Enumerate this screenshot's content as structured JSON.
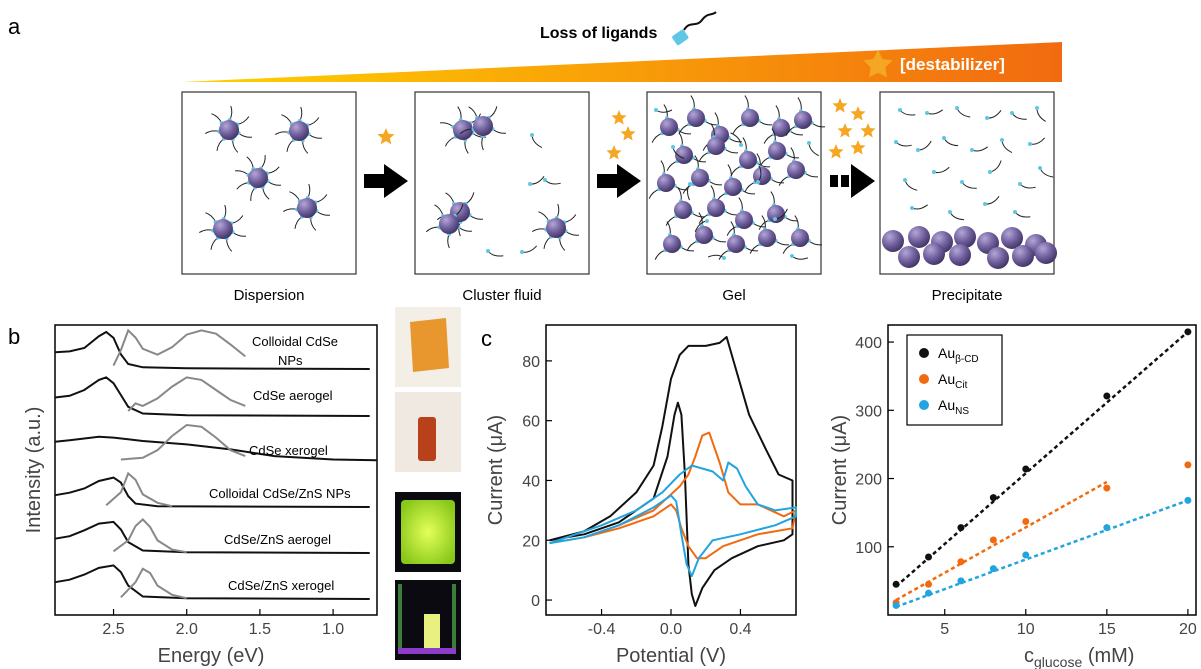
{
  "panel_a": {
    "label": "a",
    "ligand_loss_label": "Loss of ligands",
    "destabilizer_label": "[destabilizer]",
    "stages": [
      "Dispersion",
      "Cluster fluid",
      "Gel",
      "Precipitate"
    ],
    "colors": {
      "particle": "#6f5e9c",
      "ligand_end": "#5fc6e6",
      "star": "#f5a623",
      "gradient_start": "#ffd200",
      "gradient_end": "#f26a10"
    }
  },
  "panel_b": {
    "label": "b",
    "ylabel": "Intensity (a.u.)",
    "xlabel": "Energy (eV)",
    "xticks": [
      "2.5",
      "2.0",
      "1.5",
      "1.0"
    ],
    "xlim": [
      2.9,
      0.7
    ],
    "spectra": [
      {
        "label_line1": "Colloidal CdSe",
        "label_line2": "NPs",
        "absorption": [
          [
            2.9,
            0.4
          ],
          [
            2.8,
            0.42
          ],
          [
            2.7,
            0.5
          ],
          [
            2.6,
            0.78
          ],
          [
            2.55,
            0.88
          ],
          [
            2.5,
            0.74
          ],
          [
            2.45,
            0.35
          ],
          [
            2.4,
            0.12
          ],
          [
            2.3,
            0.04
          ],
          [
            2.0,
            0.02
          ],
          [
            1.5,
            0.01
          ],
          [
            0.75,
            0.0
          ]
        ],
        "emission": [
          [
            2.5,
            0.08
          ],
          [
            2.45,
            0.45
          ],
          [
            2.4,
            0.92
          ],
          [
            2.35,
            0.75
          ],
          [
            2.3,
            0.48
          ],
          [
            2.2,
            0.34
          ],
          [
            2.1,
            0.52
          ],
          [
            2.0,
            0.82
          ],
          [
            1.9,
            0.92
          ],
          [
            1.8,
            0.84
          ],
          [
            1.7,
            0.58
          ],
          [
            1.6,
            0.3
          ]
        ]
      },
      {
        "label_line1": "CdSe aerogel",
        "label_line2": "",
        "absorption": [
          [
            2.9,
            0.44
          ],
          [
            2.8,
            0.48
          ],
          [
            2.7,
            0.62
          ],
          [
            2.6,
            0.86
          ],
          [
            2.55,
            0.92
          ],
          [
            2.5,
            0.78
          ],
          [
            2.45,
            0.5
          ],
          [
            2.4,
            0.22
          ],
          [
            2.3,
            0.06
          ],
          [
            2.0,
            0.02
          ],
          [
            0.75,
            0.0
          ]
        ],
        "emission": [
          [
            2.4,
            0.12
          ],
          [
            2.35,
            0.3
          ],
          [
            2.3,
            0.24
          ],
          [
            2.2,
            0.42
          ],
          [
            2.1,
            0.7
          ],
          [
            2.0,
            0.92
          ],
          [
            1.9,
            0.86
          ],
          [
            1.8,
            0.62
          ],
          [
            1.7,
            0.38
          ],
          [
            1.6,
            0.24
          ]
        ]
      },
      {
        "label_line1": "CdSe xerogel",
        "label_line2": "",
        "absorption": [
          [
            2.9,
            0.48
          ],
          [
            2.8,
            0.52
          ],
          [
            2.6,
            0.6
          ],
          [
            2.5,
            0.58
          ],
          [
            2.3,
            0.5
          ],
          [
            2.0,
            0.42
          ],
          [
            1.7,
            0.3
          ],
          [
            1.4,
            0.14
          ],
          [
            1.0,
            0.06
          ],
          [
            0.7,
            0.04
          ]
        ],
        "emission": [
          [
            2.45,
            0.06
          ],
          [
            2.3,
            0.1
          ],
          [
            2.2,
            0.28
          ],
          [
            2.1,
            0.62
          ],
          [
            2.0,
            0.88
          ],
          [
            1.9,
            0.84
          ],
          [
            1.8,
            0.58
          ],
          [
            1.7,
            0.28
          ],
          [
            1.6,
            0.14
          ]
        ]
      },
      {
        "label_line1": "Colloidal CdSe/ZnS NPs",
        "label_line2": "",
        "absorption": [
          [
            2.9,
            0.28
          ],
          [
            2.8,
            0.34
          ],
          [
            2.7,
            0.44
          ],
          [
            2.6,
            0.62
          ],
          [
            2.5,
            0.7
          ],
          [
            2.45,
            0.58
          ],
          [
            2.4,
            0.26
          ],
          [
            2.35,
            0.08
          ],
          [
            2.2,
            0.02
          ],
          [
            0.75,
            0.0
          ]
        ],
        "emission": [
          [
            2.55,
            0.04
          ],
          [
            2.45,
            0.35
          ],
          [
            2.4,
            0.8
          ],
          [
            2.35,
            0.65
          ],
          [
            2.3,
            0.3
          ],
          [
            2.2,
            0.1
          ],
          [
            2.1,
            0.02
          ]
        ]
      },
      {
        "label_line1": "CdSe/ZnS aerogel",
        "label_line2": "",
        "absorption": [
          [
            2.9,
            0.34
          ],
          [
            2.8,
            0.4
          ],
          [
            2.7,
            0.54
          ],
          [
            2.6,
            0.7
          ],
          [
            2.5,
            0.74
          ],
          [
            2.45,
            0.56
          ],
          [
            2.4,
            0.26
          ],
          [
            2.3,
            0.06
          ],
          [
            2.0,
            0.02
          ],
          [
            0.75,
            0.0
          ]
        ],
        "emission": [
          [
            2.5,
            0.04
          ],
          [
            2.4,
            0.3
          ],
          [
            2.35,
            0.64
          ],
          [
            2.3,
            0.8
          ],
          [
            2.25,
            0.62
          ],
          [
            2.2,
            0.3
          ],
          [
            2.1,
            0.08
          ],
          [
            2.0,
            0.02
          ]
        ]
      },
      {
        "label_line1": "CdSe/ZnS xerogel",
        "label_line2": "",
        "absorption": [
          [
            2.9,
            0.4
          ],
          [
            2.8,
            0.46
          ],
          [
            2.7,
            0.58
          ],
          [
            2.6,
            0.74
          ],
          [
            2.5,
            0.8
          ],
          [
            2.45,
            0.64
          ],
          [
            2.4,
            0.32
          ],
          [
            2.3,
            0.06
          ],
          [
            2.0,
            0.02
          ],
          [
            0.75,
            0.0
          ]
        ],
        "emission": [
          [
            2.45,
            0.04
          ],
          [
            2.35,
            0.4
          ],
          [
            2.3,
            0.72
          ],
          [
            2.25,
            0.62
          ],
          [
            2.2,
            0.32
          ],
          [
            2.1,
            0.1
          ],
          [
            2.0,
            0.02
          ]
        ]
      }
    ],
    "photo_colors": [
      "#e8962e",
      "#b8401a",
      "#c6ec2c",
      "#e8f080"
    ]
  },
  "panel_c": {
    "label": "c",
    "cv": {
      "ylabel": "Current (μA)",
      "xlabel": "Potential (V)",
      "xlim": [
        -0.72,
        0.72
      ],
      "ylim": [
        -5,
        92
      ],
      "xticks": [
        "-0.4",
        "0.0",
        "0.4"
      ],
      "yticks": [
        "0",
        "20",
        "40",
        "60",
        "80"
      ],
      "series": [
        {
          "color": "#111111",
          "points": [
            [
              -0.7,
              20
            ],
            [
              -0.5,
              22
            ],
            [
              -0.3,
              26
            ],
            [
              -0.1,
              34
            ],
            [
              -0.02,
              48
            ],
            [
              0.02,
              62
            ],
            [
              0.04,
              66
            ],
            [
              0.06,
              62
            ],
            [
              0.08,
              42
            ],
            [
              0.1,
              12
            ],
            [
              0.12,
              2
            ],
            [
              0.14,
              -2
            ],
            [
              0.18,
              4
            ],
            [
              0.25,
              10
            ],
            [
              0.35,
              14
            ],
            [
              0.5,
              18
            ],
            [
              0.65,
              20
            ],
            [
              0.7,
              22
            ],
            [
              0.7,
              40
            ],
            [
              0.62,
              42
            ],
            [
              0.55,
              50
            ],
            [
              0.45,
              62
            ],
            [
              0.36,
              80
            ],
            [
              0.32,
              88
            ],
            [
              0.28,
              86
            ],
            [
              0.2,
              85
            ],
            [
              0.1,
              85
            ],
            [
              0.05,
              82
            ],
            [
              0.0,
              74
            ],
            [
              -0.05,
              58
            ],
            [
              -0.1,
              45
            ],
            [
              -0.2,
              36
            ],
            [
              -0.35,
              28
            ],
            [
              -0.5,
              23
            ],
            [
              -0.7,
              20
            ]
          ]
        },
        {
          "color": "#f26a10",
          "points": [
            [
              -0.7,
              19
            ],
            [
              -0.5,
              21
            ],
            [
              -0.3,
              24
            ],
            [
              -0.1,
              28
            ],
            [
              0.0,
              32
            ],
            [
              0.03,
              30
            ],
            [
              0.06,
              24
            ],
            [
              0.1,
              18
            ],
            [
              0.15,
              14
            ],
            [
              0.2,
              14
            ],
            [
              0.3,
              18
            ],
            [
              0.5,
              22
            ],
            [
              0.7,
              24
            ],
            [
              0.72,
              30
            ],
            [
              0.65,
              28
            ],
            [
              0.5,
              32
            ],
            [
              0.4,
              32
            ],
            [
              0.33,
              36
            ],
            [
              0.28,
              46
            ],
            [
              0.22,
              56
            ],
            [
              0.18,
              55
            ],
            [
              0.14,
              48
            ],
            [
              0.1,
              42
            ],
            [
              0.05,
              38
            ],
            [
              -0.1,
              30
            ],
            [
              -0.3,
              25
            ],
            [
              -0.5,
              21
            ],
            [
              -0.7,
              19
            ]
          ]
        },
        {
          "color": "#22a4e0",
          "points": [
            [
              -0.7,
              19
            ],
            [
              -0.5,
              21
            ],
            [
              -0.3,
              25
            ],
            [
              -0.1,
              31
            ],
            [
              0.0,
              35
            ],
            [
              0.03,
              33
            ],
            [
              0.06,
              22
            ],
            [
              0.09,
              12
            ],
            [
              0.12,
              8
            ],
            [
              0.16,
              14
            ],
            [
              0.24,
              20
            ],
            [
              0.4,
              22
            ],
            [
              0.6,
              25
            ],
            [
              0.72,
              28
            ],
            [
              0.72,
              31
            ],
            [
              0.6,
              30
            ],
            [
              0.5,
              32
            ],
            [
              0.43,
              38
            ],
            [
              0.38,
              44
            ],
            [
              0.33,
              46
            ],
            [
              0.3,
              40
            ],
            [
              0.24,
              43
            ],
            [
              0.18,
              44
            ],
            [
              0.12,
              45
            ],
            [
              0.05,
              42
            ],
            [
              -0.05,
              36
            ],
            [
              -0.2,
              30
            ],
            [
              -0.4,
              25
            ],
            [
              -0.6,
              21
            ],
            [
              -0.7,
              19
            ]
          ]
        }
      ]
    },
    "calibration": {
      "ylabel": "Current (μA)",
      "xlabel_main": "c",
      "xlabel_sub": "glucose",
      "xlabel_unit": " (mM)",
      "xlim": [
        1.5,
        20.5
      ],
      "ylim": [
        0,
        425
      ],
      "xticks": [
        "5",
        "10",
        "15",
        "20"
      ],
      "yticks": [
        "100",
        "200",
        "300",
        "400"
      ],
      "legend_position": "top-left",
      "series": [
        {
          "name_main": "Au",
          "name_sub": "β-CD",
          "color": "#111111",
          "x": [
            2,
            4,
            6,
            8,
            10,
            15,
            20
          ],
          "y": [
            45,
            85,
            128,
            172,
            214,
            321,
            415
          ],
          "fit": [
            [
              2,
              42
            ],
            [
              20,
              415
            ]
          ]
        },
        {
          "name_main": "Au",
          "name_sub": "Cit",
          "color": "#f26a10",
          "x": [
            2,
            4,
            6,
            8,
            10,
            15,
            20
          ],
          "y": [
            18,
            45,
            78,
            110,
            137,
            186,
            220
          ],
          "fit": [
            [
              2,
              22
            ],
            [
              15,
              195
            ]
          ]
        },
        {
          "name_main": "Au",
          "name_sub": "NS",
          "color": "#22a4e0",
          "x": [
            2,
            4,
            6,
            8,
            10,
            15,
            20
          ],
          "y": [
            14,
            32,
            50,
            68,
            88,
            128,
            168
          ],
          "fit": [
            [
              2,
              12
            ],
            [
              20,
              168
            ]
          ]
        }
      ]
    }
  }
}
